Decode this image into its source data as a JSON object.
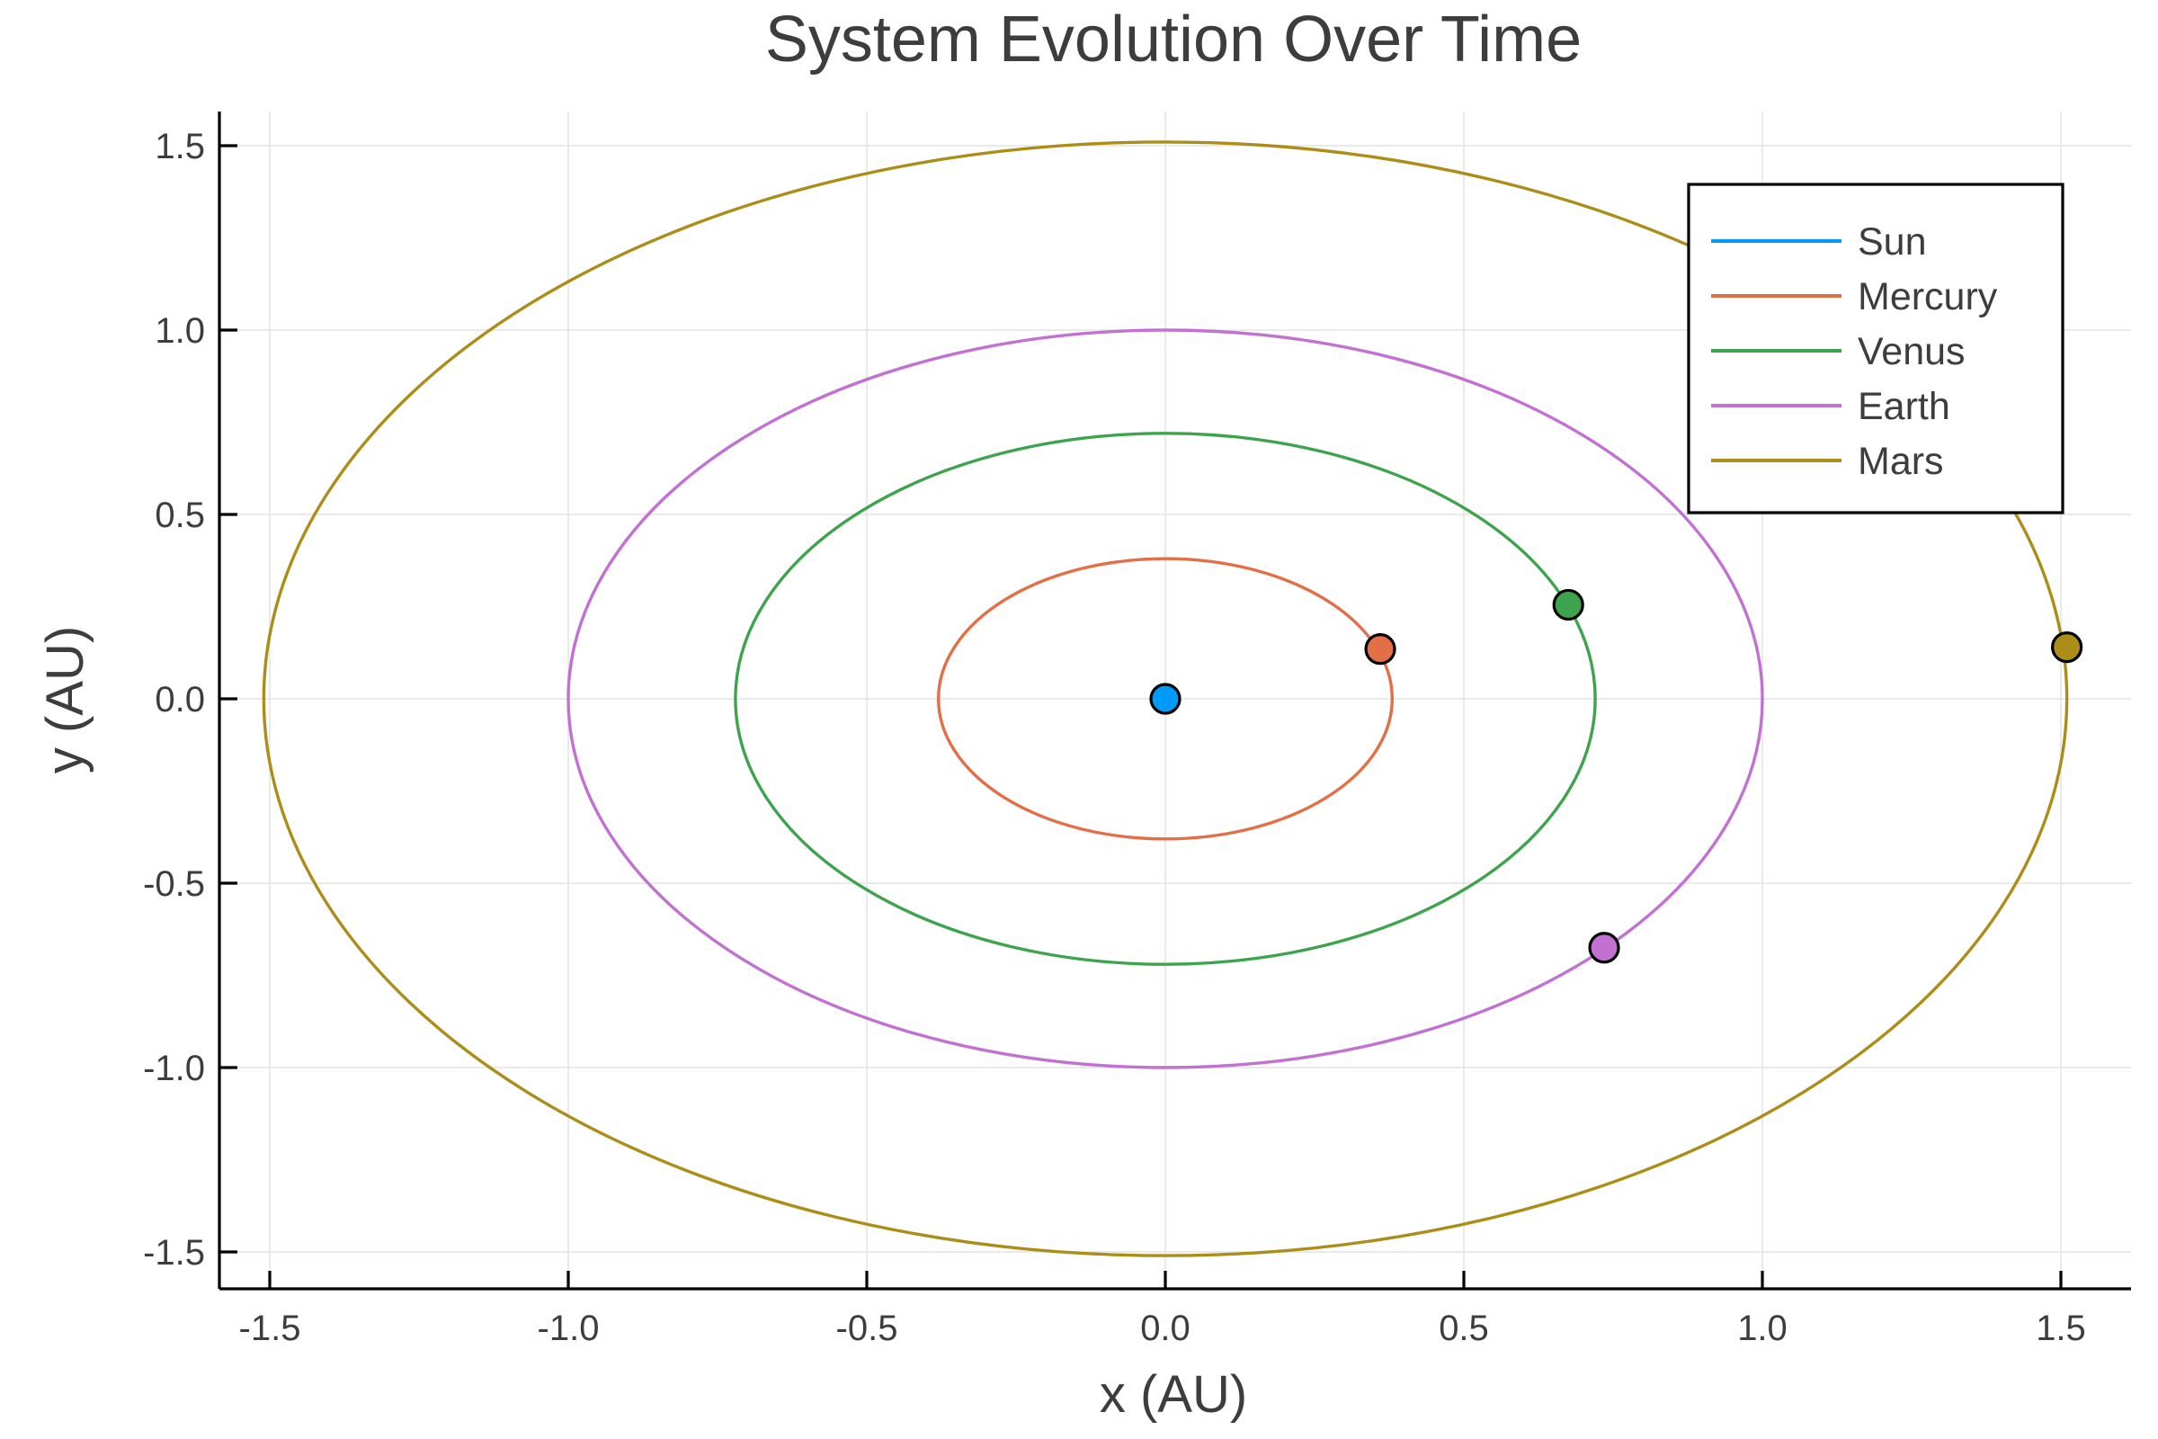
{
  "chart_data": {
    "type": "line",
    "title": "System Evolution Over Time",
    "xlabel": "x (AU)",
    "ylabel": "y (AU)",
    "xlim": [
      -1.6,
      1.6
    ],
    "ylim": [
      -1.6,
      1.6
    ],
    "xticks": [
      -1.5,
      -1.0,
      -0.5,
      0.0,
      0.5,
      1.0,
      1.5
    ],
    "xtick_labels": [
      "-1.5",
      "-1.0",
      "-0.5",
      "0.0",
      "0.5",
      "1.0",
      "1.5"
    ],
    "yticks": [
      -1.5,
      -1.0,
      -0.5,
      0.0,
      0.5,
      1.0,
      1.5
    ],
    "ytick_labels": [
      "-1.5",
      "-1.0",
      "-0.5",
      "0.0",
      "0.5",
      "1.0",
      "1.5"
    ],
    "grid": true,
    "legend_position": "top-right",
    "series": [
      {
        "name": "Sun",
        "color": "#009af9",
        "orbit_radius": 0.0,
        "position": [
          0.0,
          0.0
        ]
      },
      {
        "name": "Mercury",
        "color": "#e26f46",
        "orbit_radius": 0.38,
        "position": [
          0.36,
          0.135
        ]
      },
      {
        "name": "Venus",
        "color": "#3da44d",
        "orbit_radius": 0.72,
        "position": [
          0.675,
          0.255
        ]
      },
      {
        "name": "Earth",
        "color": "#c271d2",
        "orbit_radius": 1.0,
        "position": [
          0.735,
          -0.675
        ]
      },
      {
        "name": "Mars",
        "color": "#ac8d18",
        "orbit_radius": 1.51,
        "position": [
          1.51,
          0.14
        ]
      }
    ]
  }
}
